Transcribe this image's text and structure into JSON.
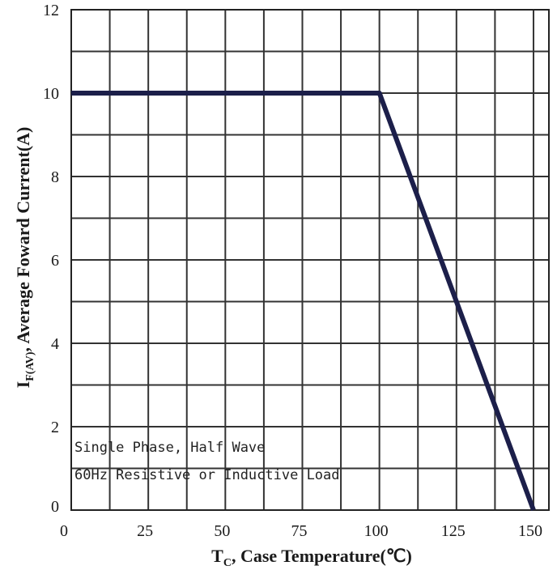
{
  "chart_data": {
    "type": "line",
    "xlabel": {
      "symbol": "T",
      "subscript": "C",
      "text": ", Case Temperature(℃)"
    },
    "ylabel": {
      "symbol": "I",
      "subscript": "F(AV)",
      "text": ", Average Foward Current(A)"
    },
    "xlim": [
      0,
      155
    ],
    "ylim": [
      0,
      12
    ],
    "x_ticks": [
      "0",
      "25",
      "50",
      "75",
      "100",
      "125",
      "150"
    ],
    "y_ticks": [
      "0",
      "2",
      "4",
      "6",
      "8",
      "10",
      "12"
    ],
    "grid": true,
    "series": [
      {
        "x": [
          0,
          100,
          150
        ],
        "y": [
          10,
          10,
          0
        ],
        "color": "#1c1f4a"
      }
    ],
    "annotations": [
      "Single Phase, Half Wave",
      "60Hz Resistive or Inductive Load"
    ]
  }
}
